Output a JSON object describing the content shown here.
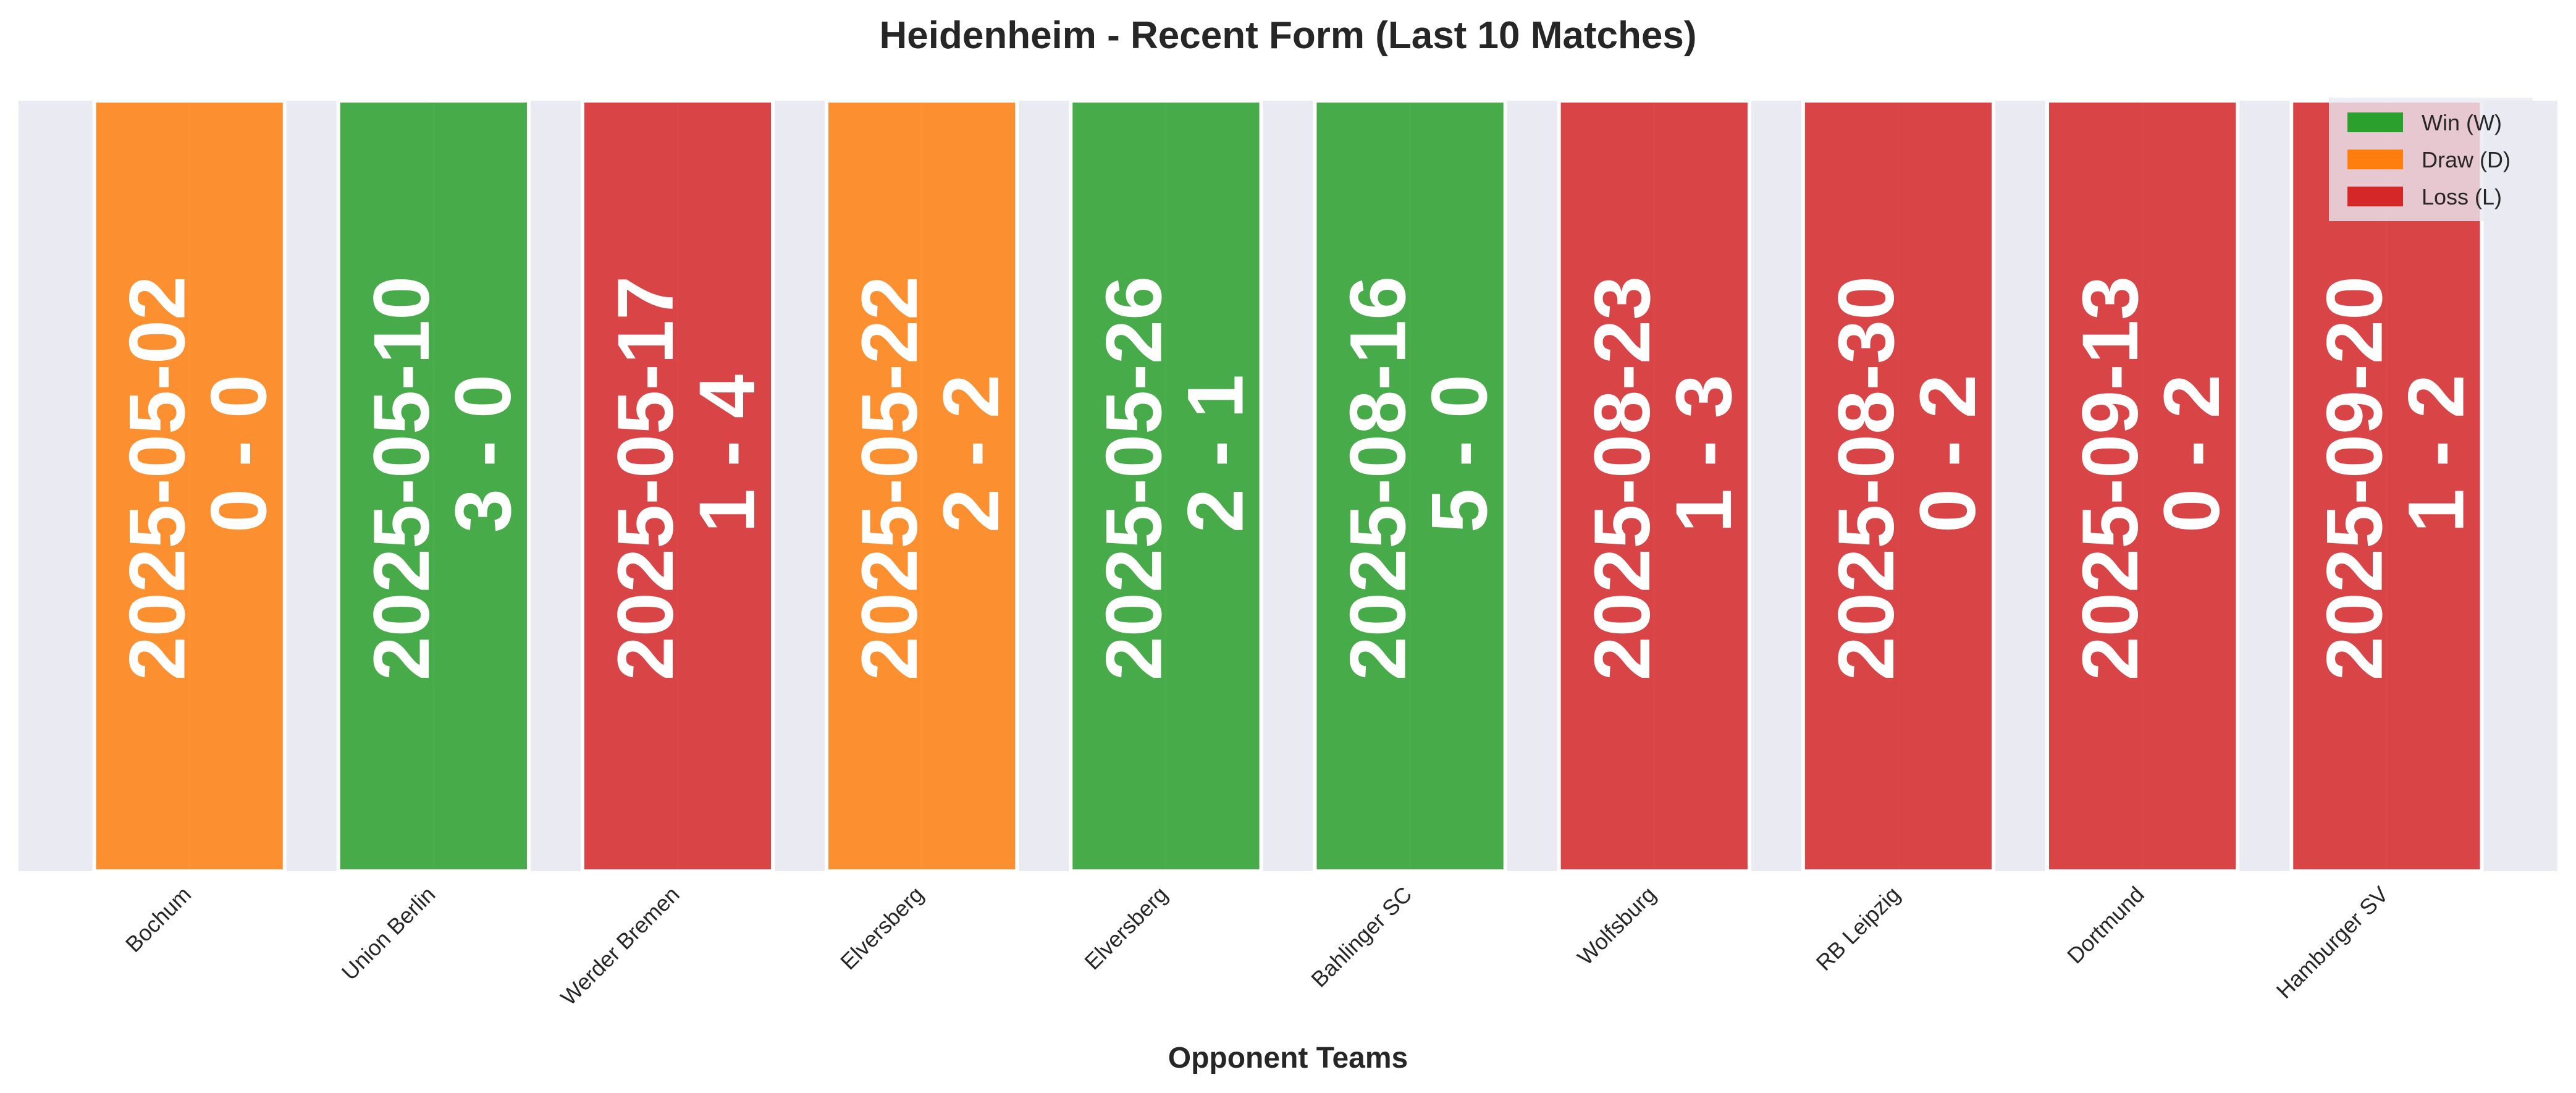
{
  "chart_data": {
    "type": "bar",
    "title": "Heidenheim - Recent Form (Last 10 Matches)",
    "xlabel": "Opponent Teams",
    "ylabel": "",
    "grid": true,
    "legend_position": "top-right",
    "categories": [
      "Bochum",
      "Union Berlin",
      "Werder Bremen",
      "Elversberg",
      "Elversberg",
      "Bahlinger SC",
      "Wolfsburg",
      "RB Leipzig",
      "Dortmund",
      "Hamburger SV"
    ],
    "values": [
      1,
      1,
      1,
      1,
      1,
      1,
      1,
      1,
      1,
      1
    ],
    "ylim": [
      0,
      1
    ],
    "results": [
      "D",
      "W",
      "L",
      "D",
      "W",
      "W",
      "L",
      "L",
      "L",
      "L"
    ],
    "dates": [
      "2025-05-02",
      "2025-05-10",
      "2025-05-17",
      "2025-05-22",
      "2025-05-26",
      "2025-08-16",
      "2025-08-23",
      "2025-08-30",
      "2025-09-13",
      "2025-09-20"
    ],
    "scores": [
      "0 - 0",
      "3 - 0",
      "1 - 4",
      "2 - 2",
      "2 - 1",
      "5 - 0",
      "1 - 3",
      "0 - 2",
      "0 - 2",
      "1 - 2"
    ],
    "legend": [
      {
        "key": "W",
        "label": "Win (W)",
        "color": "#2ca02c"
      },
      {
        "key": "D",
        "label": "Draw (D)",
        "color": "#ff7f0e"
      },
      {
        "key": "L",
        "label": "Loss (L)",
        "color": "#d62728"
      }
    ],
    "colors": {
      "plot_background": "#eaeaf2",
      "grid": "#ffffff",
      "text": "#262626",
      "bar_label": "#ffffff"
    }
  }
}
